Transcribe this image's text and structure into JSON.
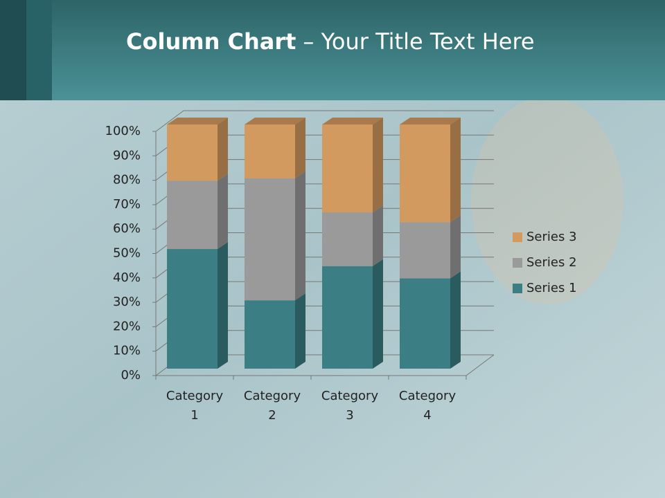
{
  "chart_data": {
    "type": "stacked3d",
    "title": "Column Chart",
    "title_rest": "– Your Title Text Here",
    "categories": [
      "Category 1",
      "Category 2",
      "Category 3",
      "Category 4"
    ],
    "series": [
      {
        "name": "Series 1",
        "color": "#3b7f84",
        "values": [
          49,
          28,
          42,
          37
        ]
      },
      {
        "name": "Series 2",
        "color": "#9a9a9a",
        "values": [
          28,
          50,
          22,
          23
        ]
      },
      {
        "name": "Series 3",
        "color": "#d39a5f",
        "values": [
          23,
          22,
          36,
          40
        ]
      }
    ],
    "ylim": [
      0,
      100
    ],
    "yticks": [
      {
        "value": 0,
        "label": "0%"
      },
      {
        "value": 10,
        "label": "10%"
      },
      {
        "value": 20,
        "label": "20%"
      },
      {
        "value": 30,
        "label": "30%"
      },
      {
        "value": 40,
        "label": "40%"
      },
      {
        "value": 50,
        "label": "50%"
      },
      {
        "value": 60,
        "label": "60%"
      },
      {
        "value": 70,
        "label": "70%"
      },
      {
        "value": 80,
        "label": "80%"
      },
      {
        "value": 90,
        "label": "90%"
      },
      {
        "value": 100,
        "label": "100%"
      }
    ],
    "grid": true,
    "legend": "right"
  }
}
